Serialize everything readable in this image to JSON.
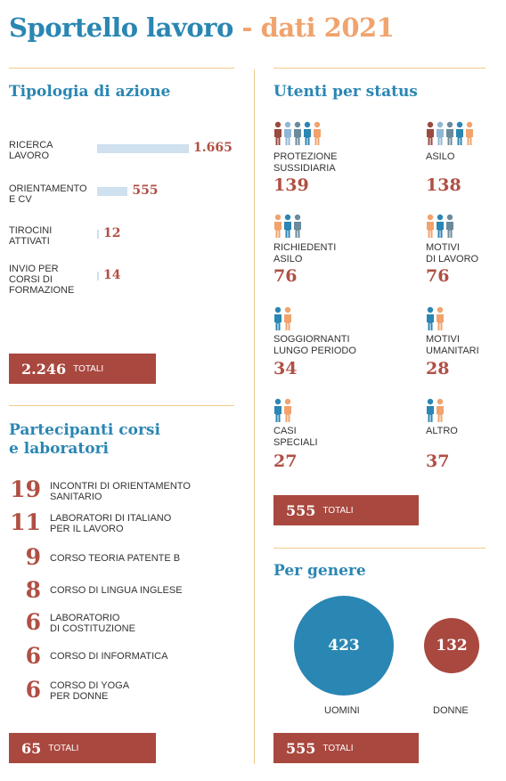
{
  "title": {
    "part1": "Sportello lavoro",
    "dash": "-",
    "part2": "dati 2021"
  },
  "tipologia": {
    "heading": "Tipologia di azione",
    "items": [
      {
        "label": "RICERCA LAVORO",
        "value": "1.665"
      },
      {
        "label": "ORIENTAMENTO E CV",
        "value": "555"
      },
      {
        "label": "TIROCINI ATTIVATI",
        "value": "12"
      },
      {
        "label": "INVIO PER CORSI DI FORMAZIONE",
        "value": "14"
      }
    ],
    "total_value": "2.246",
    "total_label": "TOTALI"
  },
  "corsi": {
    "heading_line1": "Partecipanti corsi",
    "heading_line2": "e laboratori",
    "items": [
      {
        "value": "19",
        "label1": "INCONTRI DI ORIENTAMENTO",
        "label2": "SANITARIO"
      },
      {
        "value": "11",
        "label1": "LABORATORI DI ITALIANO",
        "label2": "PER IL LAVORO"
      },
      {
        "value": "9",
        "label1": "CORSO TEORIA PATENTE B",
        "label2": ""
      },
      {
        "value": "8",
        "label1": "CORSO DI LINGUA INGLESE",
        "label2": ""
      },
      {
        "value": "6",
        "label1": "LABORATORIO",
        "label2": "DI COSTITUZIONE"
      },
      {
        "value": "6",
        "label1": "CORSO DI INFORMATICA",
        "label2": ""
      },
      {
        "value": "6",
        "label1": "CORSO DI YOGA",
        "label2": "PER DONNE"
      }
    ],
    "total_value": "65",
    "total_label": "TOTALI"
  },
  "status": {
    "heading": "Utenti per status",
    "items": [
      {
        "label1": "PROTEZIONE",
        "label2": "SUSSIDIARIA",
        "value": "139",
        "icon": "people-group-5-icon"
      },
      {
        "label1": "ASILO",
        "label2": "",
        "value": "138",
        "icon": "people-group-5-icon"
      },
      {
        "label1": "RICHIEDENTI",
        "label2": "ASILO",
        "value": "76",
        "icon": "people-group-3-icon"
      },
      {
        "label1": "MOTIVI",
        "label2": "DI LAVORO",
        "value": "76",
        "icon": "people-group-3-icon"
      },
      {
        "label1": "SOGGIORNANTI",
        "label2": "LUNGO PERIODO",
        "value": "34",
        "icon": "people-pair-icon"
      },
      {
        "label1": "MOTIVI",
        "label2": "UMANITARI",
        "value": "28",
        "icon": "people-pair-icon"
      },
      {
        "label1": "CASI",
        "label2": "SPECIALI",
        "value": "27",
        "icon": "people-pair-icon"
      },
      {
        "label1": "ALTRO",
        "label2": "",
        "value": "37",
        "icon": "people-pair-icon"
      }
    ],
    "total_value": "555",
    "total_label": "TOTALI"
  },
  "genere": {
    "heading": "Per genere",
    "men_value": "423",
    "men_label": "UOMINI",
    "women_value": "132",
    "women_label": "DONNE",
    "total_value": "555",
    "total_label": "TOTALI"
  },
  "colors": {
    "blue": "#2a86b3",
    "orange": "#f0a36d",
    "red": "#a9483f",
    "bar": "#cfe0ee",
    "rule": "#f2c98c",
    "brown": "#9a4a3f",
    "gray": "#6b8a9a",
    "lightblue": "#8fb6d6"
  },
  "chart_data": [
    {
      "type": "bar",
      "title": "Tipologia di azione",
      "categories": [
        "RICERCA LAVORO",
        "ORIENTAMENTO E CV",
        "TIROCINI ATTIVATI",
        "INVIO PER CORSI DI FORMAZIONE"
      ],
      "values": [
        1665,
        555,
        12,
        14
      ]
    },
    {
      "type": "pie",
      "title": "Per genere",
      "categories": [
        "UOMINI",
        "DONNE"
      ],
      "values": [
        423,
        132
      ]
    }
  ]
}
